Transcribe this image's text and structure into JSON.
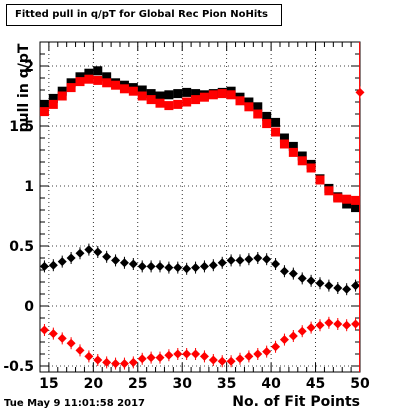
{
  "chart_data": {
    "type": "scatter",
    "title": "Fitted pull in q/pT for Global Rec Pion NoHits",
    "xlabel": "No. of Fit Points",
    "ylabel": "pull in q/pT",
    "xlim": [
      14,
      50
    ],
    "ylim": [
      -0.55,
      2.2
    ],
    "x_ticks": [
      15,
      20,
      25,
      30,
      35,
      40,
      45,
      50
    ],
    "y_ticks": [
      -0.5,
      0,
      0.5,
      1,
      1.5,
      2
    ],
    "y_tick_labels": [
      "-0.5",
      "0",
      "0.5",
      "1",
      "1.5",
      "2"
    ],
    "grid": true,
    "series": [
      {
        "marker": "square",
        "color": "#000000",
        "x": [
          14.5,
          15.5,
          16.5,
          17.5,
          18.5,
          19.5,
          20.5,
          21.5,
          22.5,
          23.5,
          24.5,
          25.5,
          26.5,
          27.5,
          28.5,
          29.5,
          30.5,
          31.5,
          32.5,
          33.5,
          34.5,
          35.5,
          36.5,
          37.5,
          38.5,
          39.5,
          40.5,
          41.5,
          42.5,
          43.5,
          44.5,
          45.5,
          46.5,
          47.5,
          48.5,
          49.5
        ],
        "y": [
          1.68,
          1.73,
          1.79,
          1.86,
          1.91,
          1.94,
          1.96,
          1.91,
          1.86,
          1.84,
          1.82,
          1.8,
          1.77,
          1.75,
          1.76,
          1.77,
          1.78,
          1.77,
          1.76,
          1.77,
          1.78,
          1.79,
          1.74,
          1.7,
          1.66,
          1.58,
          1.53,
          1.4,
          1.33,
          1.25,
          1.18,
          1.06,
          0.98,
          0.91,
          0.85,
          0.82
        ]
      },
      {
        "marker": "square",
        "color": "#ff0000",
        "x": [
          14.5,
          15.5,
          16.5,
          17.5,
          18.5,
          19.5,
          20.5,
          21.5,
          22.5,
          23.5,
          24.5,
          25.5,
          26.5,
          27.5,
          28.5,
          29.5,
          30.5,
          31.5,
          32.5,
          33.5,
          34.5,
          35.5,
          36.5,
          37.5,
          38.5,
          39.5,
          40.5,
          41.5,
          42.5,
          43.5,
          44.5,
          45.5,
          46.5,
          47.5,
          48.5,
          49.5
        ],
        "y": [
          1.62,
          1.68,
          1.75,
          1.82,
          1.87,
          1.89,
          1.88,
          1.86,
          1.84,
          1.81,
          1.79,
          1.75,
          1.72,
          1.69,
          1.67,
          1.68,
          1.7,
          1.72,
          1.74,
          1.76,
          1.77,
          1.76,
          1.71,
          1.66,
          1.6,
          1.52,
          1.45,
          1.35,
          1.28,
          1.21,
          1.15,
          1.05,
          0.96,
          0.9,
          0.89,
          0.88
        ]
      },
      {
        "marker": "diamond",
        "color": "#000000",
        "x": [
          14.5,
          15.5,
          16.5,
          17.5,
          18.5,
          19.5,
          20.5,
          21.5,
          22.5,
          23.5,
          24.5,
          25.5,
          26.5,
          27.5,
          28.5,
          29.5,
          30.5,
          31.5,
          32.5,
          33.5,
          34.5,
          35.5,
          36.5,
          37.5,
          38.5,
          39.5,
          40.5,
          41.5,
          42.5,
          43.5,
          44.5,
          45.5,
          46.5,
          47.5,
          48.5,
          49.5
        ],
        "y": [
          0.33,
          0.34,
          0.37,
          0.4,
          0.44,
          0.47,
          0.45,
          0.41,
          0.38,
          0.36,
          0.35,
          0.33,
          0.33,
          0.33,
          0.32,
          0.32,
          0.31,
          0.32,
          0.33,
          0.34,
          0.36,
          0.38,
          0.38,
          0.39,
          0.4,
          0.39,
          0.35,
          0.29,
          0.27,
          0.23,
          0.21,
          0.19,
          0.17,
          0.15,
          0.14,
          0.17
        ]
      },
      {
        "marker": "diamond",
        "color": "#ff0000",
        "x": [
          14.5,
          15.5,
          16.5,
          17.5,
          18.5,
          19.5,
          20.5,
          21.5,
          22.5,
          23.5,
          24.5,
          25.5,
          26.5,
          27.5,
          28.5,
          29.5,
          30.5,
          31.5,
          32.5,
          33.5,
          34.5,
          35.5,
          36.5,
          37.5,
          38.5,
          39.5,
          40.5,
          41.5,
          42.5,
          43.5,
          44.5,
          45.5,
          46.5,
          47.5,
          48.5,
          49.5,
          50.0
        ],
        "y": [
          -0.2,
          -0.23,
          -0.27,
          -0.31,
          -0.37,
          -0.42,
          -0.45,
          -0.47,
          -0.48,
          -0.48,
          -0.47,
          -0.44,
          -0.43,
          -0.43,
          -0.41,
          -0.4,
          -0.4,
          -0.4,
          -0.42,
          -0.45,
          -0.46,
          -0.46,
          -0.44,
          -0.42,
          -0.4,
          -0.38,
          -0.34,
          -0.28,
          -0.25,
          -0.21,
          -0.18,
          -0.16,
          -0.14,
          -0.15,
          -0.16,
          -0.15,
          1.78
        ]
      }
    ]
  },
  "timestamp": "Tue May  9 11:01:58 2017"
}
